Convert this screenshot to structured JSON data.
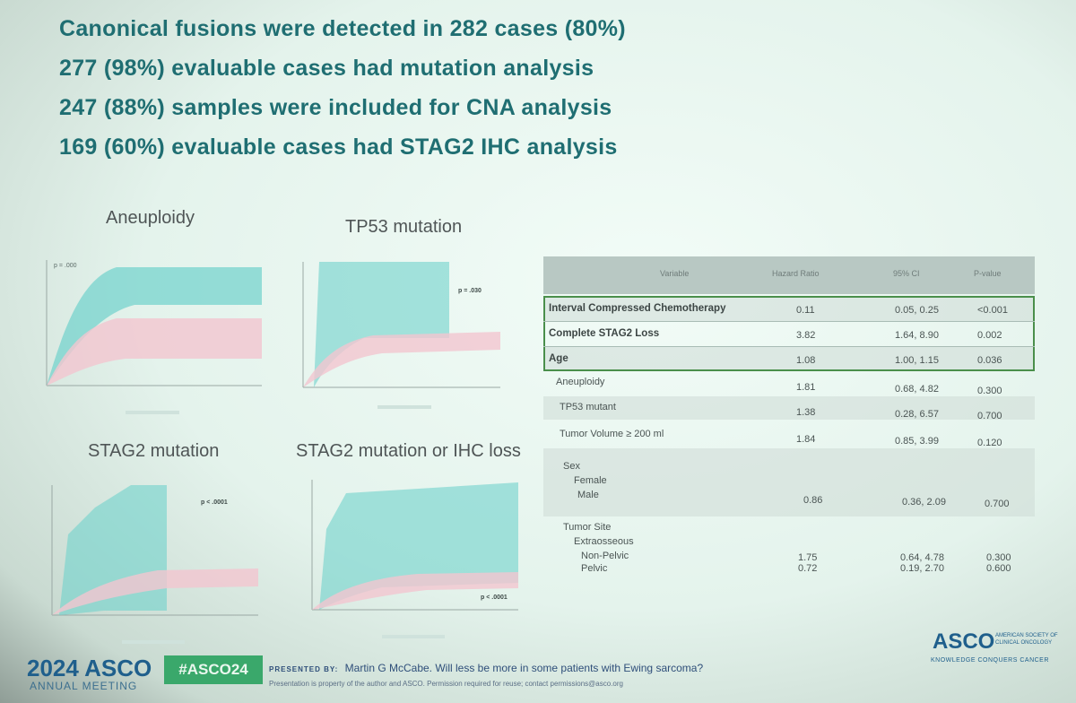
{
  "bullets": [
    "Canonical fusions were detected in 282 cases (80%)",
    "277 (98%) evaluable cases had mutation analysis",
    "247 (88%) samples were included for CNA analysis",
    "169 (60%) evaluable cases had STAG2 IHC analysis"
  ],
  "panels": {
    "aneuploidy": {
      "title": "Aneuploidy",
      "p": "p = .000"
    },
    "tp53": {
      "title": "TP53 mutation",
      "p": "p = .030"
    },
    "stag2": {
      "title": "STAG2 mutation",
      "p": "p < .0001"
    },
    "stag2_ihc": {
      "title": "STAG2 mutation or IHC loss",
      "p": "p < .0001"
    }
  },
  "table": {
    "headers": [
      "Variable",
      "Hazard Ratio",
      "95% CI",
      "P-value"
    ],
    "rows": [
      {
        "variable": "Interval Compressed Chemotherapy",
        "hr": "0.11",
        "ci": "0.05, 0.25",
        "p": "<0.001"
      },
      {
        "variable": "Complete STAG2 Loss",
        "hr": "3.82",
        "ci": "1.64, 8.90",
        "p": "0.002"
      },
      {
        "variable": "Age",
        "hr": "1.08",
        "ci": "1.00, 1.15",
        "p": "0.036"
      },
      {
        "variable": "Aneuploidy",
        "hr": "1.81",
        "ci": "0.68, 4.82",
        "p": "0.300"
      },
      {
        "variable": "TP53 mutant",
        "hr": "1.38",
        "ci": "0.28, 6.57",
        "p": "0.700"
      },
      {
        "variable": "Tumor Volume ≥ 200 ml",
        "hr": "1.84",
        "ci": "0.85, 3.99",
        "p": "0.120"
      }
    ],
    "sex_label": "Sex",
    "sex_female": "Female",
    "sex_male": "Male",
    "sex_male_hr": "0.86",
    "sex_male_ci": "0.36, 2.09",
    "sex_male_p": "0.700",
    "site_label": "Tumor Site",
    "site_extra": "Extraosseous",
    "site_nonpelvic": "Non-Pelvic",
    "site_nonpelvic_hr": "1.75",
    "site_nonpelvic_ci": "0.64, 4.78",
    "site_nonpelvic_p": "0.300",
    "site_pelvic": "Pelvic",
    "site_pelvic_hr": "0.72",
    "site_pelvic_ci": "0.19, 2.70",
    "site_pelvic_p": "0.600"
  },
  "footer": {
    "year_brand": "2024 ASCO",
    "meeting": "ANNUAL MEETING",
    "hashtag": "#ASCO24",
    "presented_by": "PRESENTED BY:",
    "presenter": "Martin G McCabe. Will less be more in some patients with Ewing sarcoma?",
    "disclaimer": "Presentation is property of the author and ASCO. Permission required for reuse; contact permissions@asco.org",
    "logo": "ASCO",
    "logo_tag": "AMERICAN SOCIETY OF CLINICAL ONCOLOGY",
    "tagline": "KNOWLEDGE CONQUERS CANCER"
  },
  "colors": {
    "teal": "#1f6e72",
    "curve_teal": "#6fd2cc",
    "curve_pink": "#f2c6cf",
    "highlight": "#4a8f4b"
  }
}
